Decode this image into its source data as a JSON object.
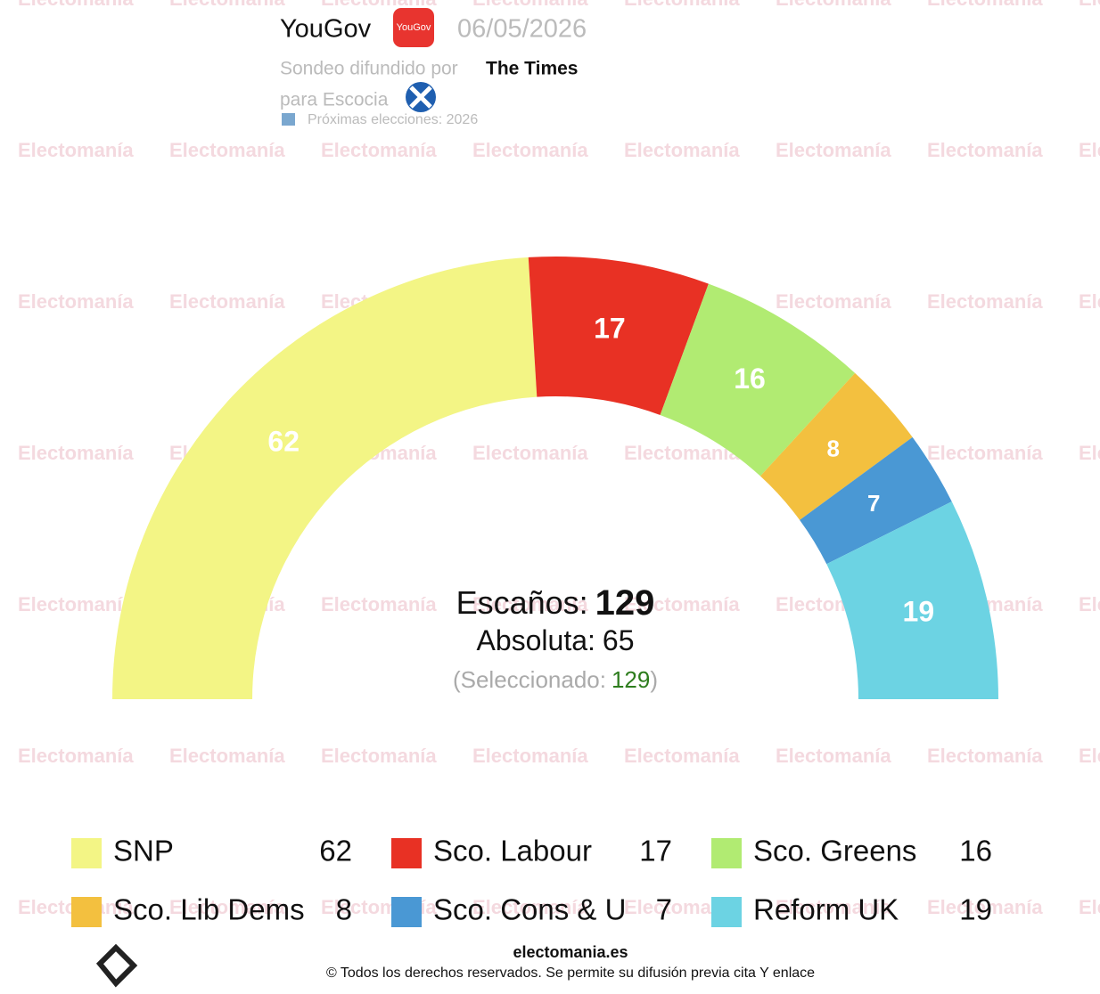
{
  "header": {
    "pollster": "YouGov",
    "date": "06/05/2026",
    "published_by_label": "Sondeo difundido por",
    "published_by": "The Times",
    "region": "para Escocia",
    "next_election": "Próximas elecciones: 2026"
  },
  "watermark": "Electomanía",
  "center": {
    "seats_label": "Escaños:",
    "seats_total": 129,
    "majority_label": "Absoluta:",
    "majority": 65,
    "selected_label": "(Seleccionado:",
    "selected_value": 129,
    "selected_close": ")"
  },
  "footer": {
    "site": "electomania.es",
    "copyright": "© Todos los derechos reservados. Se permite su difusión previa cita Y enlace"
  },
  "chart_data": {
    "type": "semicircle",
    "categories": [
      "SNP",
      "Sco. Labour",
      "Sco. Greens",
      "Sco. Lib Dems",
      "Sco. Cons & U",
      "Reform UK"
    ],
    "values": [
      62,
      17,
      16,
      8,
      7,
      19
    ],
    "colors": [
      "#f3f585",
      "#e83124",
      "#b1eb72",
      "#f3c03f",
      "#4a98d4",
      "#6cd3e3"
    ]
  }
}
